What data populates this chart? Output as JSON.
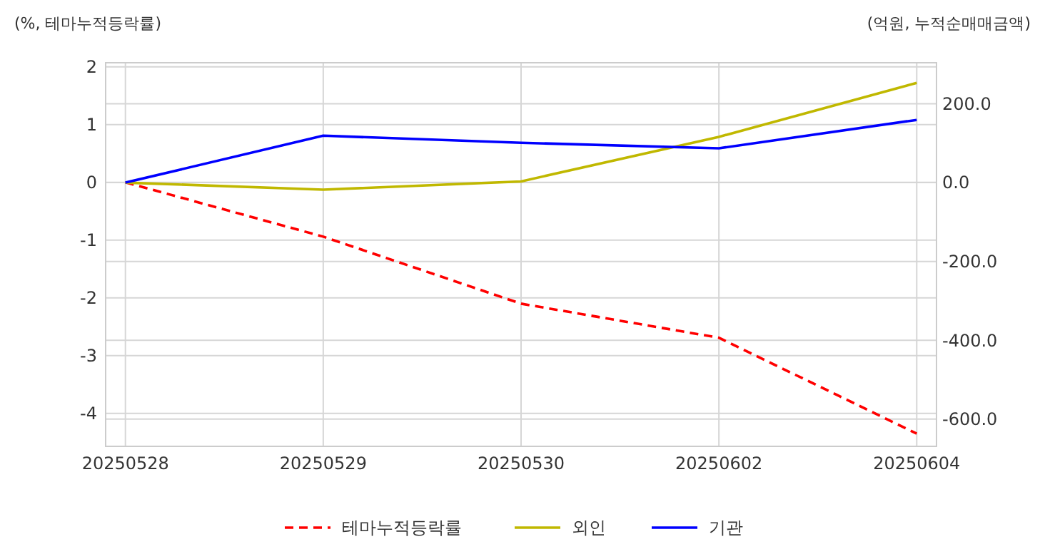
{
  "chart_data": {
    "type": "line",
    "ylabel": "(%, 테마누적등락률)",
    "y2label": "(억원, 누적순매매금액)",
    "categories": [
      "20250528",
      "20250529",
      "20250530",
      "20250602",
      "20250604"
    ],
    "series": [
      {
        "name": "테마누적등락률",
        "color": "#ff0000",
        "line_style": "dashed",
        "values": [
          0,
          -0.94,
          -2.1,
          -2.69,
          -4.35
        ]
      },
      {
        "name": "외인",
        "color": "#c0b800",
        "axis": "y2",
        "values": [
          0,
          -18,
          3,
          116,
          253
        ]
      },
      {
        "name": "기관",
        "color": "#0000ff",
        "axis": "y2",
        "values": [
          0,
          119,
          101,
          87,
          159
        ]
      }
    ],
    "ylim": [
      -4.57,
      2.07
    ],
    "yticks": [
      -4,
      -3,
      -2,
      -1,
      0,
      1,
      2
    ],
    "y2lim": [
      -669,
      304
    ],
    "y2ticks": [
      {
        "value": -600,
        "label": "-600.0"
      },
      {
        "value": -400,
        "label": "-400.0"
      },
      {
        "value": -200,
        "label": "-200.0"
      },
      {
        "value": 0,
        "label": "0.0"
      },
      {
        "value": 200,
        "label": "200.0"
      }
    ],
    "grid": true,
    "legend": "bottom",
    "marker": "none"
  }
}
